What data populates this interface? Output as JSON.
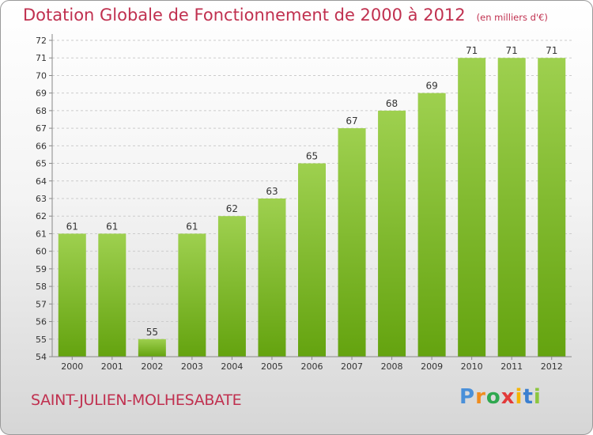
{
  "header": {
    "title": "Dotation Globale de Fonctionnement de 2000 à 2012",
    "unit": "(en milliers d'€)"
  },
  "footer": {
    "commune": "SAINT-JULIEN-MOLHESABATE",
    "logo_text": "Proxiti"
  },
  "colors": {
    "title": "#c0304f",
    "bar_light": "#9ed04f",
    "bar_dark": "#64a30f",
    "grid": "#cccccc"
  },
  "chart_data": {
    "type": "bar",
    "categories": [
      "2000",
      "2001",
      "2002",
      "2003",
      "2004",
      "2005",
      "2006",
      "2007",
      "2008",
      "2009",
      "2010",
      "2011",
      "2012"
    ],
    "values": [
      61,
      61,
      55,
      61,
      62,
      63,
      65,
      67,
      68,
      69,
      71,
      71,
      71
    ],
    "title": "Dotation Globale de Fonctionnement de 2000 à 2012",
    "subtitle": "(en milliers d'€)",
    "xlabel": "",
    "ylabel": "",
    "ylim": [
      54,
      72
    ],
    "yticks": [
      54,
      55,
      56,
      57,
      58,
      59,
      60,
      61,
      62,
      63,
      64,
      65,
      66,
      67,
      68,
      69,
      70,
      71,
      72
    ],
    "grid": true,
    "data_labels": true
  }
}
